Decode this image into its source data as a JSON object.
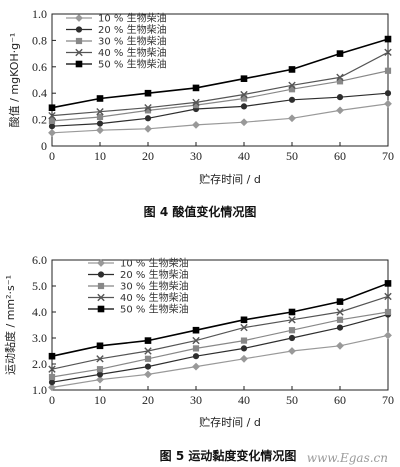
{
  "figure4": {
    "caption": "图 4    酸值变化情况图"
  },
  "figure5": {
    "caption": "图 5    运动黏度变化情况图"
  },
  "watermark": "www.Egas.cn",
  "colors": {
    "s10": "#999999",
    "s20": "#2e2e2e",
    "s30": "#888888",
    "s40": "#555555",
    "s50": "#000000"
  },
  "chart_data": [
    {
      "type": "line",
      "title": "",
      "xlabel": "贮存时间 / d",
      "ylabel": "酸值 / mgKOH·g⁻¹",
      "xlim": [
        0,
        70
      ],
      "ylim": [
        0,
        1.0
      ],
      "xticks": [
        0,
        10,
        20,
        30,
        40,
        50,
        60,
        70
      ],
      "yticks": [
        0,
        0.2,
        0.4,
        0.6,
        0.8,
        1.0
      ],
      "ytick_labels": [
        "0",
        "0.2",
        "0.4",
        "0.6",
        "0.8",
        "1.0"
      ],
      "legend_position": "top-left",
      "grid": false,
      "x": [
        0,
        10,
        20,
        30,
        40,
        50,
        60,
        70
      ],
      "series": [
        {
          "name": "10 % 生物柴油",
          "marker": "diamond",
          "values": [
            0.1,
            0.12,
            0.13,
            0.16,
            0.18,
            0.21,
            0.27,
            0.32
          ]
        },
        {
          "name": "20 % 生物柴油",
          "marker": "circle",
          "values": [
            0.15,
            0.17,
            0.21,
            0.28,
            0.3,
            0.35,
            0.37,
            0.4
          ]
        },
        {
          "name": "30 % 生物柴油",
          "marker": "square",
          "values": [
            0.19,
            0.22,
            0.27,
            0.31,
            0.36,
            0.43,
            0.49,
            0.57
          ]
        },
        {
          "name": "40 % 生物柴油",
          "marker": "cross",
          "values": [
            0.23,
            0.26,
            0.29,
            0.33,
            0.39,
            0.46,
            0.52,
            0.71
          ]
        },
        {
          "name": "50 % 生物柴油",
          "marker": "filled-square",
          "values": [
            0.29,
            0.36,
            0.4,
            0.44,
            0.51,
            0.58,
            0.7,
            0.81
          ]
        }
      ]
    },
    {
      "type": "line",
      "title": "",
      "xlabel": "贮存时间 / d",
      "ylabel": "运动黏度 / mm²·s⁻¹",
      "xlim": [
        0,
        70
      ],
      "ylim": [
        1.0,
        6.0
      ],
      "xticks": [
        0,
        10,
        20,
        30,
        40,
        50,
        60,
        70
      ],
      "yticks": [
        1.0,
        2.0,
        3.0,
        4.0,
        5.0,
        6.0
      ],
      "ytick_labels": [
        "1.0",
        "2.0",
        "3.0",
        "4.0",
        "5.0",
        "6.0"
      ],
      "legend_position": "top-left",
      "grid": false,
      "x": [
        0,
        10,
        20,
        30,
        40,
        50,
        60,
        70
      ],
      "series": [
        {
          "name": "10 % 生物柴油",
          "marker": "diamond",
          "values": [
            1.1,
            1.4,
            1.6,
            1.9,
            2.2,
            2.5,
            2.7,
            3.1
          ]
        },
        {
          "name": "20 % 生物柴油",
          "marker": "circle",
          "values": [
            1.3,
            1.6,
            1.9,
            2.3,
            2.6,
            3.0,
            3.4,
            3.9
          ]
        },
        {
          "name": "30 % 生物柴油",
          "marker": "square",
          "values": [
            1.5,
            1.8,
            2.2,
            2.6,
            2.9,
            3.3,
            3.7,
            4.0
          ]
        },
        {
          "name": "40 % 生物柴油",
          "marker": "cross",
          "values": [
            1.8,
            2.2,
            2.5,
            2.9,
            3.4,
            3.7,
            4.0,
            4.6
          ]
        },
        {
          "name": "50 % 生物柴油",
          "marker": "filled-square",
          "values": [
            2.3,
            2.7,
            2.9,
            3.3,
            3.7,
            4.0,
            4.4,
            5.1
          ]
        }
      ]
    }
  ]
}
